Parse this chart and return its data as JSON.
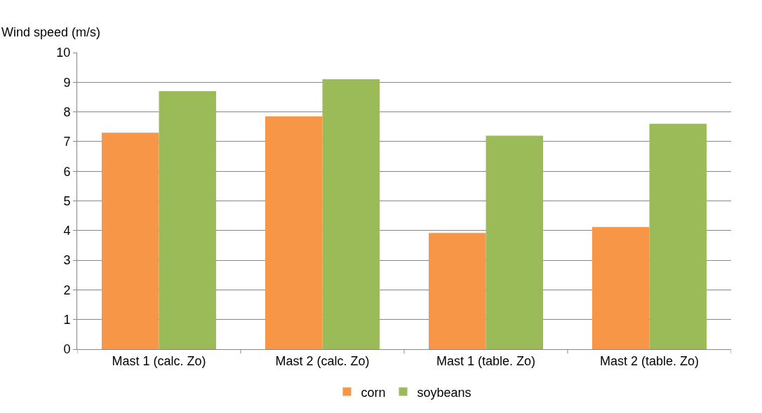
{
  "chart_data": {
    "type": "bar",
    "ylabel": "Wind speed (m/s)",
    "categories": [
      "Mast 1 (calc. Zo)",
      "Mast 2 (calc. Zo)",
      "Mast 1 (table. Zo)",
      "Mast 2 (table. Zo)"
    ],
    "series": [
      {
        "name": "corn",
        "color": "#f79646",
        "values": [
          7.3,
          7.85,
          3.92,
          4.12
        ]
      },
      {
        "name": "soybeans",
        "color": "#9bbb59",
        "values": [
          8.7,
          9.1,
          7.2,
          7.6
        ]
      }
    ],
    "ylim": [
      0,
      10
    ],
    "yticks": [
      0,
      1,
      2,
      3,
      4,
      5,
      6,
      7,
      8,
      9,
      10
    ],
    "grid": "y",
    "legend": "bottom"
  }
}
